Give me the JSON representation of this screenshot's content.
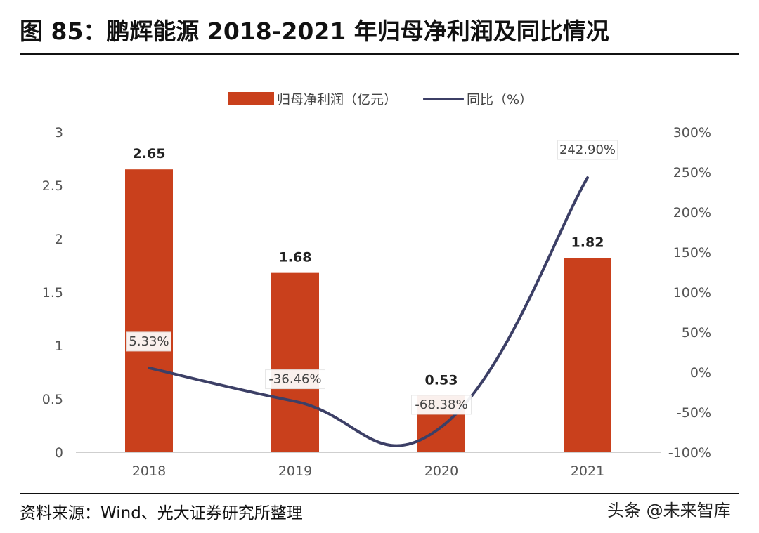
{
  "title": "图 85：鹏辉能源 2018-2021 年归母净利润及同比情况",
  "source": "资料来源：Wind、光大证券研究所整理",
  "watermark": "头条 @未来智库",
  "colors": {
    "bar": "#C9401C",
    "line": "#3C3F66",
    "axis": "#bfbfbf"
  },
  "chart_data": {
    "type": "bar+line",
    "categories": [
      "2018",
      "2019",
      "2020",
      "2021"
    ],
    "legend": [
      "归母净利润（亿元）",
      "同比（%）"
    ],
    "series": [
      {
        "name": "归母净利润（亿元）",
        "type": "bar",
        "axis": "left",
        "values": [
          2.65,
          1.68,
          0.53,
          1.82
        ],
        "labels": [
          "2.65",
          "1.68",
          "0.53",
          "1.82"
        ]
      },
      {
        "name": "同比（%）",
        "type": "line",
        "axis": "right",
        "values": [
          5.33,
          -36.46,
          -68.38,
          242.9
        ],
        "labels": [
          "5.33%",
          "-36.46%",
          "-68.38%",
          "242.90%"
        ]
      }
    ],
    "left_axis": {
      "min": 0,
      "max": 3,
      "ticks": [
        "0",
        "0.5",
        "1",
        "1.5",
        "2",
        "2.5",
        "3"
      ],
      "tick_values": [
        0,
        0.5,
        1,
        1.5,
        2,
        2.5,
        3
      ]
    },
    "right_axis": {
      "min": -100,
      "max": 300,
      "ticks": [
        "-100%",
        "-50%",
        "0%",
        "50%",
        "100%",
        "150%",
        "200%",
        "250%",
        "300%"
      ],
      "tick_values": [
        -100,
        -50,
        0,
        50,
        100,
        150,
        200,
        250,
        300
      ]
    }
  }
}
